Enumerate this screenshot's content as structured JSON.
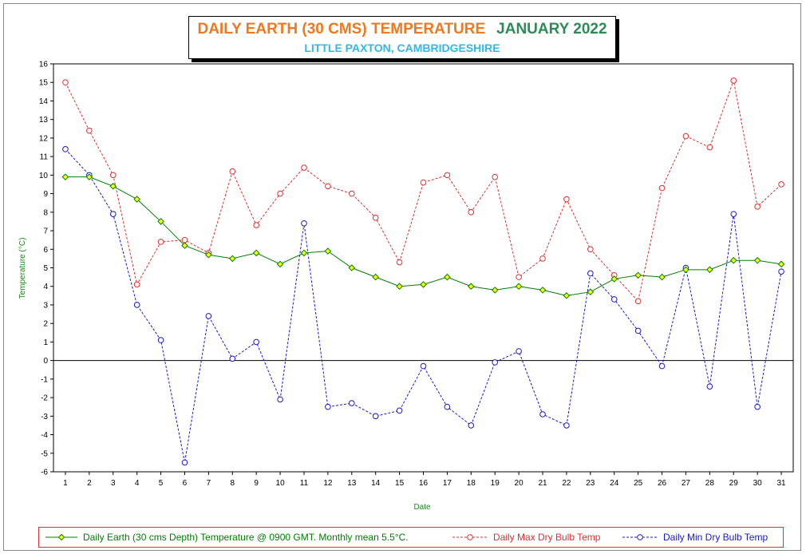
{
  "chart_data": {
    "type": "line",
    "title": "DAILY EARTH (30 CMS) TEMPERATURE",
    "title_month": "JANUARY 2022",
    "subtitle": "LITTLE PAXTON, CAMBRIDGESHIRE",
    "xlabel": "Date",
    "ylabel": "Temperature (°C)",
    "ylim": [
      -6,
      16
    ],
    "xlim": [
      1,
      31
    ],
    "grid": true,
    "legend_position": "bottom",
    "x": [
      1,
      2,
      3,
      4,
      5,
      6,
      7,
      8,
      9,
      10,
      11,
      12,
      13,
      14,
      15,
      16,
      17,
      18,
      19,
      20,
      21,
      22,
      23,
      24,
      25,
      26,
      27,
      28,
      29,
      30,
      31
    ],
    "series": [
      {
        "name": "Daily Earth (30 cms Depth) Temperature @ 0900 GMT. Monthly mean 5.5°C.",
        "color": "#008000",
        "marker_fill": "#ffff00",
        "style": "solid",
        "values": [
          9.9,
          9.9,
          9.4,
          8.7,
          7.5,
          6.2,
          5.7,
          5.5,
          5.8,
          5.2,
          5.8,
          5.9,
          5.0,
          4.5,
          4.0,
          4.1,
          4.5,
          4.0,
          3.8,
          4.0,
          3.8,
          3.5,
          3.7,
          4.4,
          4.6,
          4.5,
          4.9,
          4.9,
          5.4,
          5.4,
          5.2
        ]
      },
      {
        "name": "Daily Max Dry Bulb Temp",
        "color": "#e03030",
        "marker_fill": "#ffffff",
        "style": "dashed",
        "values": [
          15.0,
          12.4,
          10.0,
          4.1,
          6.4,
          6.5,
          5.8,
          10.2,
          7.3,
          9.0,
          10.4,
          9.4,
          9.0,
          7.7,
          5.3,
          9.6,
          10.0,
          8.0,
          9.9,
          4.5,
          5.5,
          8.7,
          6.0,
          4.6,
          3.2,
          9.3,
          12.1,
          11.5,
          15.1,
          8.3,
          9.5
        ]
      },
      {
        "name": "Daily Min Dry Bulb Temp",
        "color": "#1a1acc",
        "marker_fill": "#ffffff",
        "style": "dashed",
        "values": [
          11.4,
          10.0,
          7.9,
          3.0,
          1.1,
          -5.5,
          2.4,
          0.1,
          1.0,
          -2.1,
          7.4,
          -2.5,
          -2.3,
          -3.0,
          -2.7,
          -0.3,
          -2.5,
          -3.5,
          -0.1,
          0.5,
          -2.9,
          -3.5,
          4.7,
          3.3,
          1.6,
          -0.3,
          5.0,
          -1.4,
          7.9,
          -2.5,
          4.8
        ]
      }
    ]
  }
}
